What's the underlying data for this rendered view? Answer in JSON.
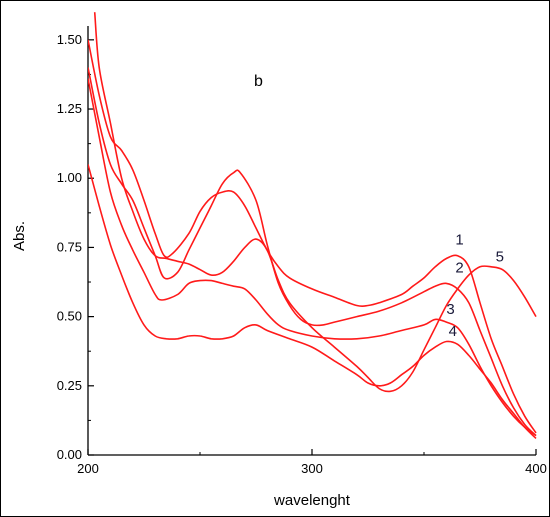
{
  "chart_data": {
    "type": "line",
    "panel_label": "b",
    "xlabel": "wavelenght",
    "ylabel": "Abs.",
    "xlim": [
      200,
      400
    ],
    "ylim": [
      0,
      1.55
    ],
    "x_ticks": [
      "200",
      "300",
      "400"
    ],
    "y_ticks": [
      "0.00",
      "0.25",
      "0.50",
      "0.75",
      "1.00",
      "1.25",
      "1.50"
    ],
    "line_color": "#ff1a1a",
    "series": [
      {
        "name": "1",
        "label_at": [
          364,
          0.76
        ],
        "points": [
          [
            200,
            1.5
          ],
          [
            205,
            1.3
          ],
          [
            210,
            1.15
          ],
          [
            215,
            1.1
          ],
          [
            220,
            1.03
          ],
          [
            225,
            0.92
          ],
          [
            230,
            0.8
          ],
          [
            234,
            0.72
          ],
          [
            238,
            0.73
          ],
          [
            245,
            0.8
          ],
          [
            250,
            0.88
          ],
          [
            255,
            0.93
          ],
          [
            260,
            0.95
          ],
          [
            265,
            0.95
          ],
          [
            270,
            0.9
          ],
          [
            275,
            0.82
          ],
          [
            280,
            0.74
          ],
          [
            285,
            0.68
          ],
          [
            290,
            0.64
          ],
          [
            300,
            0.6
          ],
          [
            310,
            0.57
          ],
          [
            320,
            0.54
          ],
          [
            325,
            0.54
          ],
          [
            330,
            0.55
          ],
          [
            340,
            0.58
          ],
          [
            345,
            0.61
          ],
          [
            350,
            0.64
          ],
          [
            355,
            0.68
          ],
          [
            360,
            0.71
          ],
          [
            365,
            0.72
          ],
          [
            370,
            0.68
          ],
          [
            375,
            0.55
          ],
          [
            380,
            0.42
          ],
          [
            385,
            0.32
          ],
          [
            390,
            0.22
          ],
          [
            395,
            0.14
          ],
          [
            400,
            0.08
          ]
        ]
      },
      {
        "name": "2",
        "label_at": [
          364,
          0.66
        ],
        "points": [
          [
            200,
            1.4
          ],
          [
            205,
            1.2
          ],
          [
            210,
            1.05
          ],
          [
            215,
            0.98
          ],
          [
            220,
            0.92
          ],
          [
            225,
            0.82
          ],
          [
            230,
            0.72
          ],
          [
            234,
            0.64
          ],
          [
            240,
            0.66
          ],
          [
            245,
            0.74
          ],
          [
            250,
            0.82
          ],
          [
            255,
            0.9
          ],
          [
            260,
            0.98
          ],
          [
            265,
            1.02
          ],
          [
            268,
            1.02
          ],
          [
            275,
            0.92
          ],
          [
            280,
            0.76
          ],
          [
            285,
            0.62
          ],
          [
            290,
            0.54
          ],
          [
            295,
            0.49
          ],
          [
            300,
            0.47
          ],
          [
            305,
            0.47
          ],
          [
            310,
            0.48
          ],
          [
            320,
            0.5
          ],
          [
            330,
            0.52
          ],
          [
            340,
            0.55
          ],
          [
            350,
            0.59
          ],
          [
            355,
            0.61
          ],
          [
            360,
            0.62
          ],
          [
            365,
            0.6
          ],
          [
            370,
            0.55
          ],
          [
            375,
            0.45
          ],
          [
            380,
            0.35
          ],
          [
            385,
            0.25
          ],
          [
            390,
            0.17
          ],
          [
            395,
            0.11
          ],
          [
            400,
            0.07
          ]
        ]
      },
      {
        "name": "3",
        "label_at": [
          360,
          0.51
        ],
        "points": [
          [
            200,
            1.36
          ],
          [
            205,
            1.15
          ],
          [
            210,
            0.95
          ],
          [
            215,
            0.83
          ],
          [
            220,
            0.74
          ],
          [
            225,
            0.66
          ],
          [
            230,
            0.58
          ],
          [
            233,
            0.56
          ],
          [
            240,
            0.58
          ],
          [
            245,
            0.62
          ],
          [
            250,
            0.63
          ],
          [
            255,
            0.63
          ],
          [
            260,
            0.62
          ],
          [
            265,
            0.61
          ],
          [
            270,
            0.6
          ],
          [
            275,
            0.56
          ],
          [
            280,
            0.51
          ],
          [
            285,
            0.47
          ],
          [
            290,
            0.45
          ],
          [
            300,
            0.43
          ],
          [
            310,
            0.42
          ],
          [
            320,
            0.42
          ],
          [
            330,
            0.43
          ],
          [
            340,
            0.45
          ],
          [
            350,
            0.47
          ],
          [
            355,
            0.49
          ],
          [
            360,
            0.48
          ],
          [
            365,
            0.46
          ],
          [
            370,
            0.4
          ],
          [
            375,
            0.32
          ],
          [
            380,
            0.25
          ],
          [
            385,
            0.19
          ],
          [
            390,
            0.14
          ],
          [
            395,
            0.1
          ],
          [
            400,
            0.07
          ]
        ]
      },
      {
        "name": "4",
        "label_at": [
          361,
          0.43
        ],
        "points": [
          [
            200,
            1.05
          ],
          [
            205,
            0.9
          ],
          [
            210,
            0.76
          ],
          [
            215,
            0.65
          ],
          [
            220,
            0.55
          ],
          [
            225,
            0.47
          ],
          [
            230,
            0.43
          ],
          [
            235,
            0.42
          ],
          [
            240,
            0.42
          ],
          [
            245,
            0.43
          ],
          [
            250,
            0.43
          ],
          [
            255,
            0.42
          ],
          [
            260,
            0.42
          ],
          [
            265,
            0.43
          ],
          [
            270,
            0.46
          ],
          [
            275,
            0.47
          ],
          [
            280,
            0.45
          ],
          [
            290,
            0.42
          ],
          [
            300,
            0.39
          ],
          [
            310,
            0.34
          ],
          [
            320,
            0.29
          ],
          [
            325,
            0.26
          ],
          [
            330,
            0.25
          ],
          [
            335,
            0.26
          ],
          [
            340,
            0.29
          ],
          [
            345,
            0.32
          ],
          [
            350,
            0.36
          ],
          [
            355,
            0.39
          ],
          [
            360,
            0.41
          ],
          [
            365,
            0.4
          ],
          [
            370,
            0.36
          ],
          [
            375,
            0.31
          ],
          [
            380,
            0.26
          ],
          [
            385,
            0.2
          ],
          [
            390,
            0.15
          ],
          [
            395,
            0.1
          ],
          [
            400,
            0.06
          ]
        ]
      },
      {
        "name": "5",
        "label_at": [
          382,
          0.7
        ],
        "points": [
          [
            203,
            1.6
          ],
          [
            205,
            1.4
          ],
          [
            210,
            1.2
          ],
          [
            215,
            1.0
          ],
          [
            220,
            0.88
          ],
          [
            225,
            0.78
          ],
          [
            230,
            0.72
          ],
          [
            235,
            0.71
          ],
          [
            240,
            0.7
          ],
          [
            245,
            0.69
          ],
          [
            250,
            0.67
          ],
          [
            255,
            0.65
          ],
          [
            260,
            0.66
          ],
          [
            265,
            0.7
          ],
          [
            270,
            0.75
          ],
          [
            275,
            0.78
          ],
          [
            280,
            0.74
          ],
          [
            285,
            0.63
          ],
          [
            290,
            0.55
          ],
          [
            300,
            0.46
          ],
          [
            310,
            0.39
          ],
          [
            320,
            0.32
          ],
          [
            325,
            0.28
          ],
          [
            330,
            0.24
          ],
          [
            335,
            0.23
          ],
          [
            340,
            0.25
          ],
          [
            345,
            0.3
          ],
          [
            350,
            0.38
          ],
          [
            355,
            0.46
          ],
          [
            360,
            0.54
          ],
          [
            365,
            0.6
          ],
          [
            370,
            0.65
          ],
          [
            375,
            0.68
          ],
          [
            380,
            0.68
          ],
          [
            385,
            0.67
          ],
          [
            390,
            0.63
          ],
          [
            395,
            0.57
          ],
          [
            400,
            0.5
          ]
        ]
      }
    ]
  }
}
